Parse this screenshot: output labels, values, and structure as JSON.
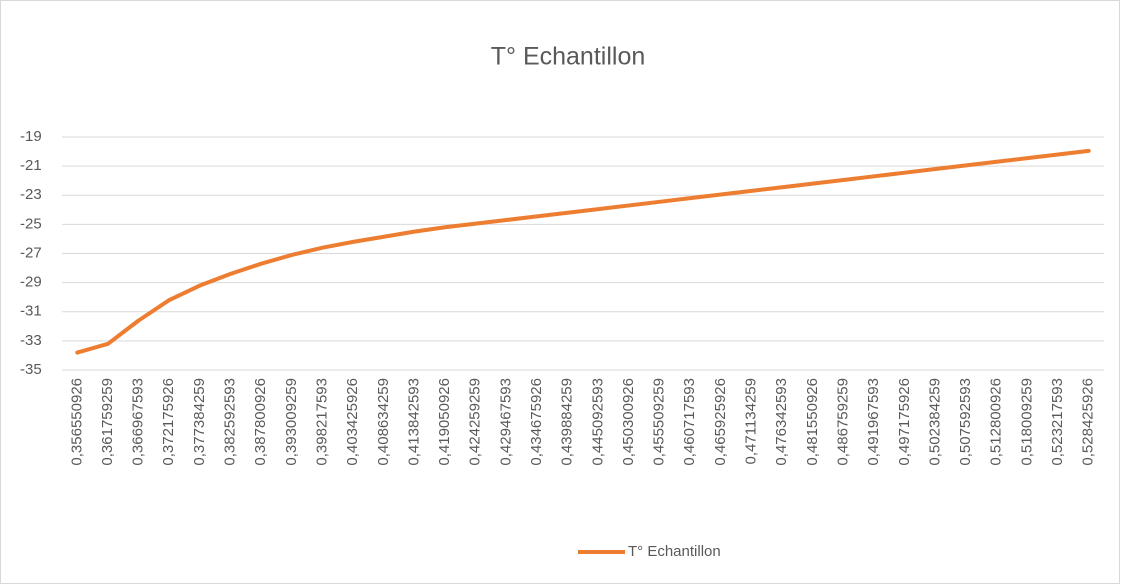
{
  "chart_data": {
    "type": "line",
    "title": "T° Echantillon",
    "categories": [
      "0,356550926",
      "0,361759259",
      "0,366967593",
      "0,372175926",
      "0,377384259",
      "0,382592593",
      "0,387800926",
      "0,393009259",
      "0,398217593",
      "0,403425926",
      "0,408634259",
      "0,413842593",
      "0,419050926",
      "0,424259259",
      "0,429467593",
      "0,434675926",
      "0,439884259",
      "0,445092593",
      "0,450300926",
      "0,455509259",
      "0,460717593",
      "0,465925926",
      "0,471134259",
      "0,476342593",
      "0,481550926",
      "0,486759259",
      "0,491967593",
      "0,497175926",
      "0,502384259",
      "0,507592593",
      "0,512800926",
      "0,518009259",
      "0,523217593",
      "0,528425926"
    ],
    "series": [
      {
        "name": "T° Echantillon",
        "color": "#ed7d31",
        "values": [
          -33.8,
          -33.2,
          -31.6,
          -30.2,
          -29.2,
          -28.4,
          -27.7,
          -27.1,
          -26.6,
          -26.2,
          -25.85,
          -25.5,
          -25.2,
          -24.95,
          -24.7,
          -24.45,
          -24.2,
          -23.95,
          -23.7,
          -23.45,
          -23.2,
          -22.95,
          -22.7,
          -22.45,
          -22.2,
          -21.95,
          -21.7,
          -21.45,
          -21.2,
          -20.95,
          -20.7,
          -20.45,
          -20.2,
          -19.95
        ]
      }
    ],
    "ylim": [
      -35,
      -19
    ],
    "yticks": [
      -35,
      -33,
      -31,
      -29,
      -27,
      -25,
      -23,
      -21,
      -19
    ],
    "grid": true,
    "legend": "bottom"
  }
}
